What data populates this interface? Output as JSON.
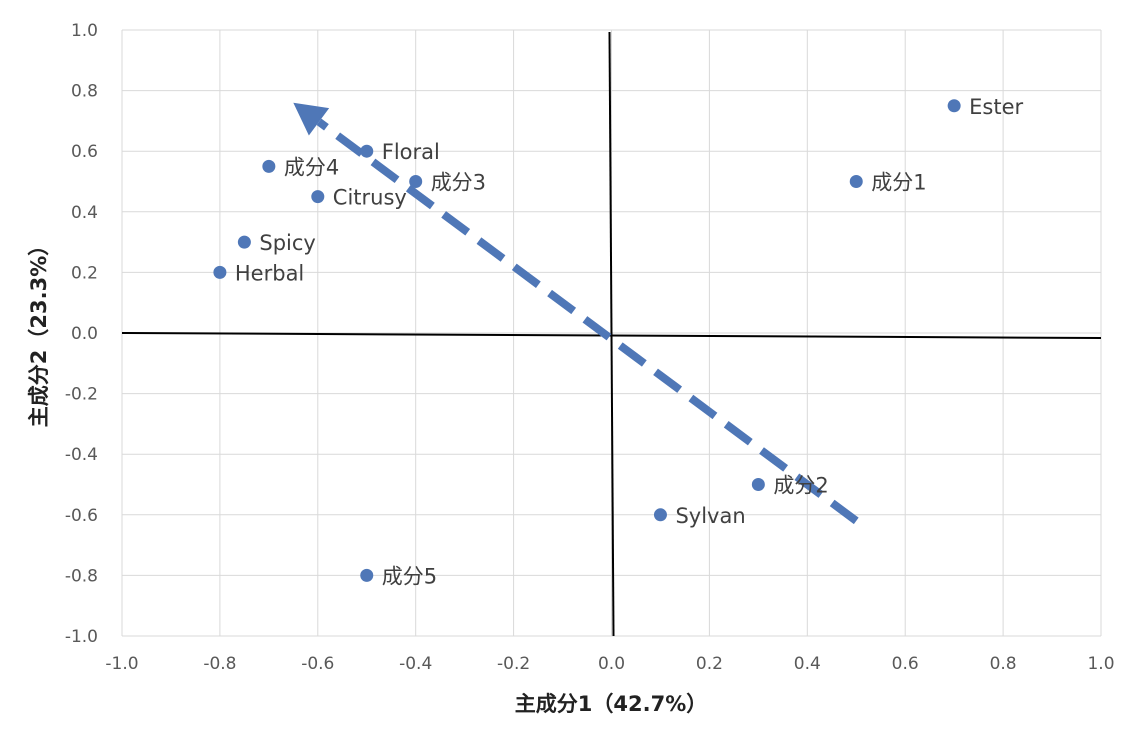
{
  "chart_data": {
    "type": "scatter",
    "xlabel": "主成分1（42.7%）",
    "ylabel": "主成分2（23.3%）",
    "xlim": [
      -1.0,
      1.0
    ],
    "ylim": [
      -1.0,
      1.0
    ],
    "x_ticks": [
      "-1.0",
      "-0.8",
      "-0.6",
      "-0.4",
      "-0.2",
      "0.0",
      "0.2",
      "0.4",
      "0.6",
      "0.8",
      "1.0"
    ],
    "y_ticks": [
      "1.0",
      "0.8",
      "0.6",
      "0.4",
      "0.2",
      "0.0",
      "-0.2",
      "-0.4",
      "-0.6",
      "-0.8",
      "-1.0"
    ],
    "grid": true,
    "marker_color": "#4F77B7",
    "arrow_color": "#4F77B7",
    "points": [
      {
        "label": "Ester",
        "x": 0.7,
        "y": 0.75
      },
      {
        "label": "成分1",
        "x": 0.5,
        "y": 0.5
      },
      {
        "label": "Floral",
        "x": -0.5,
        "y": 0.6
      },
      {
        "label": "成分4",
        "x": -0.7,
        "y": 0.55
      },
      {
        "label": "成分3",
        "x": -0.4,
        "y": 0.5
      },
      {
        "label": "Citrusy",
        "x": -0.6,
        "y": 0.45
      },
      {
        "label": "Spicy",
        "x": -0.75,
        "y": 0.3
      },
      {
        "label": "Herbal",
        "x": -0.8,
        "y": 0.2
      },
      {
        "label": "成分2",
        "x": 0.3,
        "y": -0.5
      },
      {
        "label": "Sylvan",
        "x": 0.1,
        "y": -0.6
      },
      {
        "label": "成分5",
        "x": -0.5,
        "y": -0.8
      }
    ],
    "arrow": {
      "from": [
        0.5,
        -0.62
      ],
      "to": [
        -0.65,
        0.76
      ]
    }
  }
}
